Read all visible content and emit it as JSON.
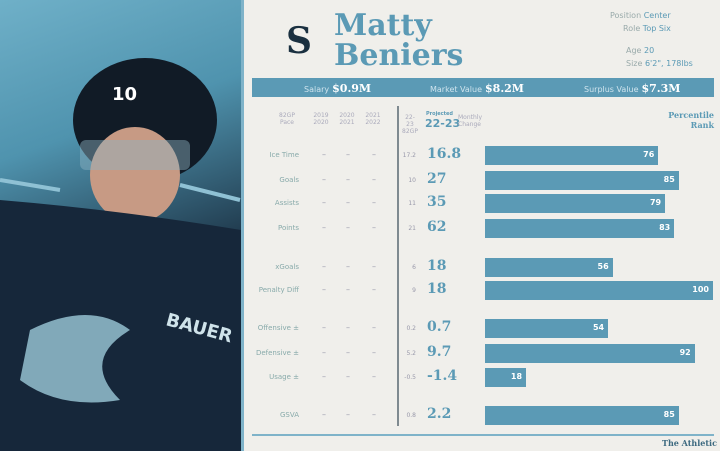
{
  "player": {
    "first": "Matty",
    "last": "Beniers",
    "position_label": "Position",
    "position": "Center",
    "role_label": "Role",
    "role": "Top Six",
    "age_label": "Age",
    "age": "20",
    "size_label": "Size",
    "size": "6'2\", 178lbs",
    "jersey": "10"
  },
  "contract": {
    "salary_label": "Salary",
    "salary": "$0.9M",
    "market_label": "Market Value",
    "market": "$8.2M",
    "surplus_label": "Surplus Value",
    "surplus": "$7.3M"
  },
  "headers": {
    "pace": "82GP Pace",
    "s1": "2019 2020",
    "s2": "2020 2021",
    "s3": "2021 2022",
    "gp": "22-23 82GP",
    "proj_small": "Projected",
    "proj": "22-23",
    "change": "Monthly Change",
    "rank": "Percentile Rank"
  },
  "footer": {
    "brand": "The Athletic"
  },
  "colors": {
    "accent": "#5b9ab5",
    "background": "#f0efeb"
  },
  "chart_data": {
    "type": "bar",
    "orientation": "horizontal",
    "xlim": [
      0,
      100
    ],
    "title": "",
    "categories": [
      "Ice Time",
      "Goals",
      "Assists",
      "Points",
      "xGoals",
      "Penalty Diff",
      "Offensive ±",
      "Defensive ±",
      "Usage ±",
      "GSVA"
    ],
    "past_seasons": [
      "–",
      "–",
      "–"
    ],
    "pace_82gp": [
      "17.2",
      "10",
      "11",
      "21",
      "6",
      "9",
      "0.2",
      "5.2",
      "-0.5",
      "0.8"
    ],
    "projected": [
      "16.8",
      "27",
      "35",
      "62",
      "18",
      "18",
      "0.7",
      "9.7",
      "-1.4",
      "2.2"
    ],
    "percentile": [
      76,
      85,
      79,
      83,
      56,
      100,
      54,
      92,
      18,
      85
    ]
  }
}
